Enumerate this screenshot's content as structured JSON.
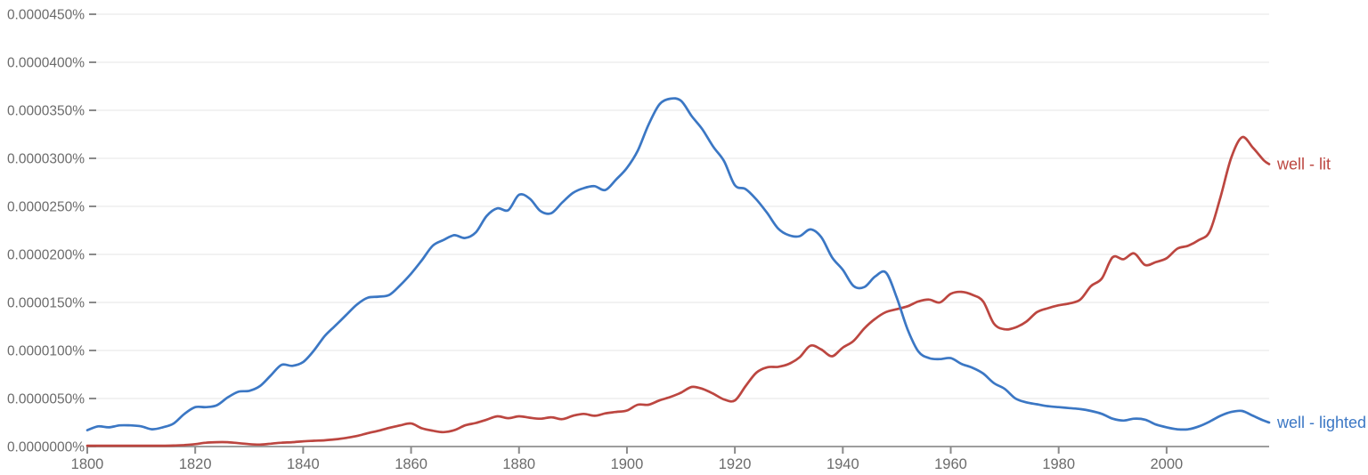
{
  "style": {
    "background": "#ffffff",
    "gridline_color": "#ededed",
    "axis_line_color": "#9e9e9e",
    "tick_mark_color": "#8a8a8a",
    "tick_text_color": "#6b6b6b",
    "blue": "#3b77c4",
    "red": "#bc4640"
  },
  "chart_data": {
    "type": "line",
    "title": "",
    "grid": true,
    "legend_position": "line-end-labels",
    "x_axis": {
      "range": [
        1800,
        2019
      ],
      "ticks": [
        1800,
        1820,
        1840,
        1860,
        1880,
        1900,
        1920,
        1940,
        1960,
        1980,
        2000
      ]
    },
    "y_axis": {
      "unit": "percent",
      "range_1e7_percent": [
        0,
        450
      ],
      "tick_labels": [
        "0.0000450%",
        "0.0000400%",
        "0.0000350%",
        "0.0000300%",
        "0.0000250%",
        "0.0000200%",
        "0.0000150%",
        "0.0000100%",
        "0.0000050%",
        "0.0000000%"
      ],
      "tick_values_1e7_percent": [
        450,
        400,
        350,
        300,
        250,
        200,
        150,
        100,
        50,
        0
      ]
    },
    "years": [
      1800,
      1802,
      1804,
      1806,
      1808,
      1810,
      1812,
      1814,
      1816,
      1818,
      1820,
      1822,
      1824,
      1826,
      1828,
      1830,
      1832,
      1834,
      1836,
      1838,
      1840,
      1842,
      1844,
      1846,
      1848,
      1850,
      1852,
      1854,
      1856,
      1858,
      1860,
      1862,
      1864,
      1866,
      1868,
      1870,
      1872,
      1874,
      1876,
      1878,
      1880,
      1882,
      1884,
      1886,
      1888,
      1890,
      1892,
      1894,
      1896,
      1898,
      1900,
      1902,
      1904,
      1906,
      1908,
      1910,
      1912,
      1914,
      1916,
      1918,
      1920,
      1922,
      1924,
      1926,
      1928,
      1930,
      1932,
      1934,
      1936,
      1938,
      1940,
      1942,
      1944,
      1946,
      1948,
      1950,
      1952,
      1954,
      1956,
      1958,
      1960,
      1962,
      1964,
      1966,
      1968,
      1970,
      1972,
      1974,
      1976,
      1978,
      1980,
      1982,
      1984,
      1986,
      1988,
      1990,
      1992,
      1994,
      1996,
      1998,
      2000,
      2002,
      2004,
      2006,
      2008,
      2010,
      2012,
      2014,
      2016,
      2018,
      2019
    ],
    "series": [
      {
        "name": "well - lit",
        "color": "#bc4640",
        "values_1e7_percent": [
          0.5,
          0.5,
          0.5,
          0.5,
          0.5,
          0.5,
          0.5,
          0.5,
          1,
          1.5,
          2.5,
          4,
          4.5,
          4.5,
          3.5,
          2.5,
          2,
          3,
          4,
          4.5,
          5.5,
          6,
          6.5,
          7.5,
          9,
          11,
          14,
          16.5,
          19.5,
          22,
          24,
          19,
          16.5,
          15,
          17,
          22,
          24.5,
          28,
          31.5,
          29.5,
          31.5,
          30,
          29,
          30.5,
          28.5,
          32,
          34,
          32,
          34.5,
          36,
          37.5,
          43.5,
          43.5,
          48,
          51.5,
          56,
          62,
          60,
          55,
          49,
          48,
          63,
          77,
          82.5,
          83,
          86,
          93,
          105,
          101,
          94,
          103,
          110,
          123,
          133,
          140,
          143,
          146,
          151,
          153,
          150,
          159,
          161,
          158,
          151,
          128,
          122,
          124,
          130,
          140,
          144,
          147,
          149,
          153,
          167,
          175,
          197,
          195,
          201,
          189,
          192,
          196,
          206,
          209,
          215,
          224,
          260,
          301,
          322,
          311,
          298,
          294
        ]
      },
      {
        "name": "well - lighted",
        "color": "#3b77c4",
        "values_1e7_percent": [
          17,
          21,
          20,
          22,
          22,
          21,
          18,
          20,
          24,
          34,
          41,
          41,
          43,
          51,
          57,
          58,
          63,
          74,
          85,
          84,
          88,
          100,
          115,
          126,
          137,
          148,
          155,
          156,
          158,
          168,
          180,
          194,
          209,
          215,
          220,
          217,
          223,
          240,
          248,
          246,
          262,
          258,
          245,
          243,
          254,
          264,
          269,
          271,
          267,
          278,
          290,
          308,
          335,
          356,
          362,
          360,
          344,
          330,
          312,
          297,
          272,
          268,
          257,
          243,
          227,
          220,
          219,
          226,
          218,
          197,
          184,
          167,
          166,
          177,
          181,
          155,
          122,
          99,
          92,
          91,
          92,
          86,
          82,
          76,
          66,
          60,
          50,
          46,
          44,
          42,
          41,
          40,
          39,
          37,
          34,
          29,
          27,
          29,
          28,
          23,
          20,
          18,
          18,
          21,
          26,
          32,
          36,
          37,
          32,
          27,
          25
        ]
      }
    ]
  }
}
